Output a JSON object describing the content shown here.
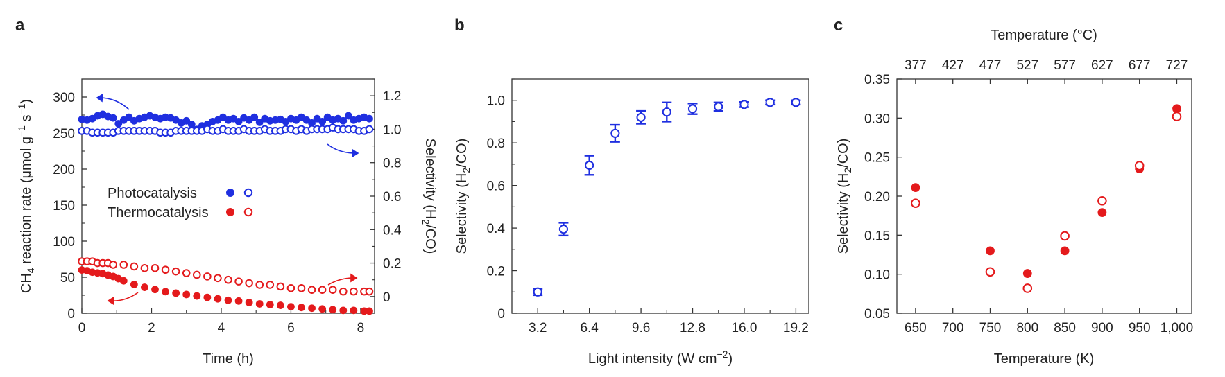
{
  "panels": {
    "a": {
      "label": "a"
    },
    "b": {
      "label": "b"
    },
    "c": {
      "label": "c"
    }
  },
  "colors": {
    "blue": "#1f2fe0",
    "red": "#e41a1c",
    "axis": "#333333"
  },
  "chart_data": [
    {
      "panel": "a",
      "type": "scatter",
      "xlabel": "Time (h)",
      "ylabel_left": "CH4 reaction rate (μmol g−1 s−1)",
      "ylabel_right": "Selectivity (H2/CO)",
      "xlim": [
        0,
        8.4
      ],
      "ylim_left": [
        0,
        325
      ],
      "ylim_right": [
        -0.1,
        1.3
      ],
      "xticks": [
        "0",
        "2",
        "4",
        "6",
        "8"
      ],
      "yticks_left": [
        "0",
        "50",
        "100",
        "150",
        "200",
        "250",
        "300"
      ],
      "yticks_right": [
        "0",
        "0.2",
        "0.4",
        "0.6",
        "0.8",
        "1.0",
        "1.2"
      ],
      "legend": {
        "position": "center-left",
        "entries": [
          "Photocatalysis",
          "Thermocatalysis"
        ]
      },
      "series": [
        {
          "name": "Photocatalysis",
          "axis": "left",
          "marker": "filled",
          "color": "blue",
          "x": [
            0,
            0.15,
            0.3,
            0.45,
            0.6,
            0.75,
            0.9,
            1.05,
            1.2,
            1.35,
            1.5,
            1.65,
            1.8,
            1.95,
            2.1,
            2.25,
            2.4,
            2.55,
            2.7,
            2.85,
            3.0,
            3.15,
            3.3,
            3.45,
            3.6,
            3.75,
            3.9,
            4.05,
            4.2,
            4.35,
            4.5,
            4.65,
            4.8,
            4.95,
            5.1,
            5.25,
            5.4,
            5.55,
            5.7,
            5.85,
            6.0,
            6.15,
            6.3,
            6.45,
            6.6,
            6.75,
            6.9,
            7.05,
            7.2,
            7.35,
            7.5,
            7.65,
            7.8,
            7.95,
            8.1,
            8.25
          ],
          "y": [
            269,
            268,
            270,
            274,
            276,
            273,
            271,
            263,
            268,
            272,
            267,
            270,
            272,
            274,
            272,
            270,
            272,
            271,
            268,
            264,
            267,
            262,
            255,
            260,
            262,
            266,
            268,
            272,
            268,
            270,
            266,
            271,
            268,
            272,
            265,
            270,
            267,
            268,
            269,
            266,
            270,
            268,
            272,
            268,
            264,
            270,
            266,
            272,
            268,
            270,
            267,
            274,
            268,
            270,
            272,
            270
          ]
        },
        {
          "name": "Photocatalysis",
          "axis": "right",
          "marker": "open",
          "color": "blue",
          "x": [
            0,
            0.15,
            0.3,
            0.45,
            0.6,
            0.75,
            0.9,
            1.05,
            1.2,
            1.35,
            1.5,
            1.65,
            1.8,
            1.95,
            2.1,
            2.25,
            2.4,
            2.55,
            2.7,
            2.85,
            3.0,
            3.15,
            3.3,
            3.45,
            3.6,
            3.75,
            3.9,
            4.05,
            4.2,
            4.35,
            4.5,
            4.65,
            4.8,
            4.95,
            5.1,
            5.25,
            5.4,
            5.55,
            5.7,
            5.85,
            6.0,
            6.15,
            6.3,
            6.45,
            6.6,
            6.75,
            6.9,
            7.05,
            7.2,
            7.35,
            7.5,
            7.65,
            7.8,
            7.95,
            8.1,
            8.25
          ],
          "y": [
            0.99,
            0.99,
            0.98,
            0.98,
            0.98,
            0.98,
            0.98,
            0.99,
            0.99,
            0.99,
            0.99,
            0.99,
            0.99,
            0.99,
            0.99,
            0.98,
            0.98,
            0.98,
            0.99,
            0.99,
            0.99,
            0.99,
            0.99,
            0.99,
            1.0,
            0.99,
            0.99,
            1.0,
            0.99,
            0.99,
            0.99,
            1.0,
            0.99,
            0.99,
            0.99,
            1.0,
            0.99,
            0.99,
            0.99,
            1.0,
            1.0,
            0.99,
            1.0,
            0.99,
            1.0,
            1.0,
            1.0,
            1.0,
            1.01,
            1.0,
            1.0,
            1.0,
            1.0,
            0.99,
            0.99,
            1.0
          ]
        },
        {
          "name": "Thermocatalysis",
          "axis": "left",
          "marker": "filled",
          "color": "red",
          "x": [
            0,
            0.15,
            0.3,
            0.45,
            0.6,
            0.75,
            0.9,
            1.05,
            1.2,
            1.5,
            1.8,
            2.1,
            2.4,
            2.7,
            3.0,
            3.3,
            3.6,
            3.9,
            4.2,
            4.5,
            4.8,
            5.1,
            5.4,
            5.7,
            6.0,
            6.3,
            6.6,
            6.9,
            7.2,
            7.5,
            7.8,
            8.1,
            8.25
          ],
          "y": [
            60,
            59,
            57,
            56,
            55,
            53,
            51,
            48,
            45,
            40,
            36,
            33,
            30,
            28,
            26,
            24,
            22,
            20,
            18,
            17,
            15,
            13,
            12,
            11,
            9,
            8,
            7,
            6,
            5,
            4,
            4,
            3,
            3
          ]
        },
        {
          "name": "Thermocatalysis",
          "axis": "right",
          "marker": "open",
          "color": "red",
          "x": [
            0,
            0.15,
            0.3,
            0.45,
            0.6,
            0.75,
            0.9,
            1.2,
            1.5,
            1.8,
            2.1,
            2.4,
            2.7,
            3.0,
            3.3,
            3.6,
            3.9,
            4.2,
            4.5,
            4.8,
            5.1,
            5.4,
            5.7,
            6.0,
            6.3,
            6.6,
            6.9,
            7.2,
            7.5,
            7.8,
            8.1,
            8.25
          ],
          "y": [
            0.21,
            0.21,
            0.21,
            0.2,
            0.2,
            0.2,
            0.19,
            0.19,
            0.18,
            0.17,
            0.17,
            0.16,
            0.15,
            0.14,
            0.13,
            0.12,
            0.11,
            0.1,
            0.09,
            0.08,
            0.07,
            0.07,
            0.06,
            0.05,
            0.05,
            0.04,
            0.04,
            0.04,
            0.03,
            0.03,
            0.03,
            0.03
          ]
        }
      ]
    },
    {
      "panel": "b",
      "type": "scatter",
      "xlabel": "Light intensity (W cm−2)",
      "ylabel": "Selectivity (H2/CO)",
      "xlim": [
        1.6,
        20.0
      ],
      "ylim": [
        0,
        1.1
      ],
      "xticks": [
        "3.2",
        "6.4",
        "9.6",
        "12.8",
        "16.0",
        "19.2"
      ],
      "yticks": [
        "0",
        "0.2",
        "0.4",
        "0.6",
        "0.8",
        "1.0"
      ],
      "series": [
        {
          "marker": "open",
          "color": "blue",
          "x": [
            3.2,
            4.8,
            6.4,
            8.0,
            9.6,
            11.2,
            12.8,
            14.4,
            16.0,
            17.6,
            19.2
          ],
          "y": [
            0.1,
            0.395,
            0.695,
            0.845,
            0.92,
            0.945,
            0.96,
            0.97,
            0.98,
            0.99,
            0.99
          ],
          "err": [
            0.015,
            0.03,
            0.045,
            0.04,
            0.03,
            0.045,
            0.025,
            0.02,
            0.012,
            0.01,
            0.01
          ]
        }
      ]
    },
    {
      "panel": "c",
      "type": "scatter",
      "xlabel": "Temperature (K)",
      "xlabel_top": "Temperature (°C)",
      "ylabel": "Selectivity (H2/CO)",
      "xlim": [
        625,
        1020
      ],
      "ylim": [
        0.05,
        0.35
      ],
      "xticks": [
        "650",
        "700",
        "750",
        "800",
        "850",
        "900",
        "950",
        "1,000"
      ],
      "xticks_top": [
        "377",
        "427",
        "477",
        "527",
        "577",
        "627",
        "677",
        "727"
      ],
      "yticks": [
        "0.05",
        "0.10",
        "0.15",
        "0.20",
        "0.25",
        "0.30",
        "0.35"
      ],
      "series": [
        {
          "marker": "filled",
          "color": "red",
          "x": [
            650,
            750,
            800,
            850,
            900,
            950,
            1000
          ],
          "y": [
            0.211,
            0.13,
            0.101,
            0.13,
            0.179,
            0.235,
            0.312
          ]
        },
        {
          "marker": "open",
          "color": "red",
          "x": [
            650,
            750,
            800,
            850,
            900,
            950,
            1000
          ],
          "y": [
            0.191,
            0.103,
            0.082,
            0.149,
            0.194,
            0.239,
            0.302
          ]
        }
      ]
    }
  ]
}
